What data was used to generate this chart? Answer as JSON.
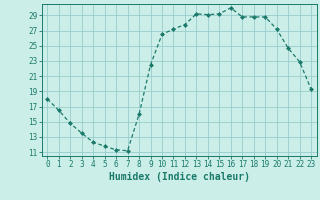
{
  "x": [
    0,
    1,
    2,
    3,
    4,
    5,
    6,
    7,
    8,
    9,
    10,
    11,
    12,
    13,
    14,
    15,
    16,
    17,
    18,
    19,
    20,
    21,
    22,
    23
  ],
  "y": [
    18,
    16.5,
    14.8,
    13.5,
    12.3,
    11.8,
    11.3,
    11.2,
    16.0,
    22.5,
    26.5,
    27.2,
    27.8,
    29.2,
    29.1,
    29.2,
    30.0,
    28.8,
    28.8,
    28.8,
    27.2,
    24.7,
    22.9,
    19.3
  ],
  "line_color": "#1a7a6a",
  "bg_color": "#cceee8",
  "grid_color": "#99cccc",
  "xlabel": "Humidex (Indice chaleur)",
  "xlim": [
    -0.5,
    23.5
  ],
  "ylim": [
    10.5,
    30.5
  ],
  "yticks": [
    11,
    13,
    15,
    17,
    19,
    21,
    23,
    25,
    27,
    29
  ],
  "xticks": [
    0,
    1,
    2,
    3,
    4,
    5,
    6,
    7,
    8,
    9,
    10,
    11,
    12,
    13,
    14,
    15,
    16,
    17,
    18,
    19,
    20,
    21,
    22,
    23
  ],
  "tick_fontsize": 5.5,
  "label_fontsize": 7.0
}
